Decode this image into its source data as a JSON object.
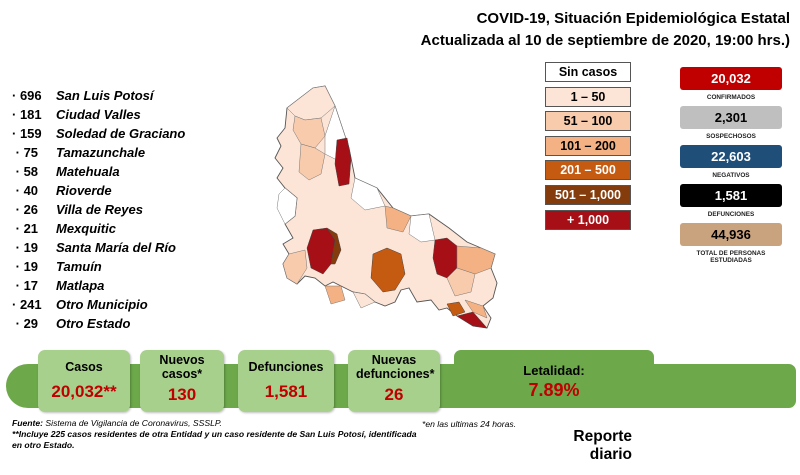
{
  "header": {
    "title": "COVID-19, Situación Epidemiológica Estatal",
    "subtitle": "Actualizada al 10 de septiembre de 2020, 19:00 hrs.)"
  },
  "municipios": [
    {
      "count": "696",
      "name": "San Luis Potosí"
    },
    {
      "count": "181",
      "name": "Ciudad Valles"
    },
    {
      "count": "159",
      "name": "Soledad de Graciano"
    },
    {
      "count": "75",
      "name": "Tamazunchale"
    },
    {
      "count": "58",
      "name": "Matehuala"
    },
    {
      "count": "40",
      "name": "Rioverde"
    },
    {
      "count": "26",
      "name": "Villa de Reyes"
    },
    {
      "count": "21",
      "name": "Mexquitic"
    },
    {
      "count": "19",
      "name": "Santa María del Río"
    },
    {
      "count": "19",
      "name": "Tamuín"
    },
    {
      "count": "17",
      "name": "Matlapa"
    },
    {
      "count": "241",
      "name": "Otro Municipio"
    },
    {
      "count": "29",
      "name": "Otro Estado"
    }
  ],
  "legend": [
    {
      "label": "Sin casos",
      "color": "#ffffff",
      "text_color": "#000000"
    },
    {
      "label": "1 – 50",
      "color": "#fce4d6",
      "text_color": "#000000"
    },
    {
      "label": "51 – 100",
      "color": "#f8cbad",
      "text_color": "#000000"
    },
    {
      "label": "101 – 200",
      "color": "#f4b183",
      "text_color": "#000000"
    },
    {
      "label": "201 – 500",
      "color": "#c55a11",
      "text_color": "#ffffff"
    },
    {
      "label": "501 – 1,000",
      "color": "#843c0c",
      "text_color": "#ffffff"
    },
    {
      "label": "+ 1,000",
      "color": "#a50f15",
      "text_color": "#ffffff"
    }
  ],
  "stats": [
    {
      "value": "20,032",
      "label": "CONFIRMADOS",
      "color": "#c00000",
      "text_color": "#ffffff"
    },
    {
      "value": "2,301",
      "label": "SOSPECHOSOS",
      "color": "#bfbfbf",
      "text_color": "#000000"
    },
    {
      "value": "22,603",
      "label": "NEGATIVOS",
      "color": "#1f4e79",
      "text_color": "#ffffff"
    },
    {
      "value": "1,581",
      "label": "DEFUNCIONES",
      "color": "#000000",
      "text_color": "#ffffff"
    },
    {
      "value": "44,936",
      "label": "TOTAL DE PERSONAS ESTUDIADAS",
      "color": "#c9a27e",
      "text_color": "#000000"
    }
  ],
  "banner": {
    "casos": {
      "title": "Casos",
      "value": "20,032**"
    },
    "nuevos_casos": {
      "title": "Nuevos casos*",
      "value": "130"
    },
    "defunciones": {
      "title": "Defunciones",
      "value": "1,581"
    },
    "nuevas_defunciones": {
      "title": "Nuevas defunciones*",
      "value": "26"
    },
    "letalidad": {
      "title": "Letalidad:",
      "value": "7.89%"
    }
  },
  "footer": {
    "fuente_label": "Fuente:",
    "fuente": "Sistema de Vigilancia de Coronavirus, SSSLP.",
    "nota": "**Incluye 225 casos residentes de otra Entidad y un caso residente de San Luis Potosí, identificada",
    "nota2": "en otro Estado.",
    "nota24": "*en las ultimas 24 horas."
  },
  "reporte": {
    "line1": "Reporte",
    "line2": "diario"
  }
}
